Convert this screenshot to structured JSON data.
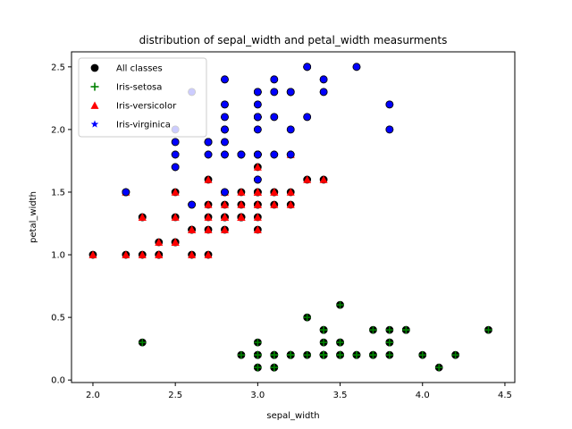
{
  "chart_data": {
    "type": "scatter",
    "title": "distribution of sepal_width and petal_width measurments",
    "xlabel": "sepal_width",
    "ylabel": "petal_width",
    "xlim": [
      1.87,
      4.56
    ],
    "ylim": [
      -0.02,
      2.62
    ],
    "xticks": [
      2.0,
      2.5,
      3.0,
      3.5,
      4.0,
      4.5
    ],
    "xtick_labels": [
      "2.0",
      "2.5",
      "3.0",
      "3.5",
      "4.0",
      "4.5"
    ],
    "yticks": [
      0.0,
      0.5,
      1.0,
      1.5,
      2.0,
      2.5
    ],
    "ytick_labels": [
      "0.0",
      "0.5",
      "1.0",
      "1.5",
      "2.0",
      "2.5"
    ],
    "grid": false,
    "legend": "top-left",
    "series": [
      {
        "name": "All classes",
        "marker": "circle",
        "color": "#000000",
        "points": []
      },
      {
        "name": "Iris-setosa",
        "marker": "plus",
        "color": "#008000",
        "points": [
          [
            3.5,
            0.2
          ],
          [
            3.0,
            0.2
          ],
          [
            3.2,
            0.2
          ],
          [
            3.1,
            0.2
          ],
          [
            3.6,
            0.2
          ],
          [
            3.9,
            0.4
          ],
          [
            3.4,
            0.3
          ],
          [
            3.4,
            0.2
          ],
          [
            2.9,
            0.2
          ],
          [
            3.1,
            0.1
          ],
          [
            3.7,
            0.2
          ],
          [
            3.4,
            0.2
          ],
          [
            3.0,
            0.1
          ],
          [
            3.0,
            0.1
          ],
          [
            4.0,
            0.2
          ],
          [
            4.4,
            0.4
          ],
          [
            3.9,
            0.4
          ],
          [
            3.5,
            0.3
          ],
          [
            3.8,
            0.3
          ],
          [
            3.8,
            0.3
          ],
          [
            3.4,
            0.2
          ],
          [
            3.7,
            0.4
          ],
          [
            3.6,
            0.2
          ],
          [
            3.3,
            0.5
          ],
          [
            3.4,
            0.2
          ],
          [
            3.0,
            0.2
          ],
          [
            3.4,
            0.4
          ],
          [
            3.5,
            0.2
          ],
          [
            3.4,
            0.2
          ],
          [
            3.2,
            0.2
          ],
          [
            3.1,
            0.2
          ],
          [
            3.4,
            0.4
          ],
          [
            4.1,
            0.1
          ],
          [
            4.2,
            0.2
          ],
          [
            3.1,
            0.2
          ],
          [
            3.2,
            0.2
          ],
          [
            3.5,
            0.2
          ],
          [
            3.1,
            0.1
          ],
          [
            3.0,
            0.2
          ],
          [
            3.4,
            0.2
          ],
          [
            3.5,
            0.3
          ],
          [
            2.3,
            0.3
          ],
          [
            3.2,
            0.2
          ],
          [
            3.5,
            0.6
          ],
          [
            3.8,
            0.4
          ],
          [
            3.0,
            0.3
          ],
          [
            3.8,
            0.2
          ],
          [
            3.2,
            0.2
          ],
          [
            3.7,
            0.2
          ],
          [
            3.3,
            0.2
          ]
        ]
      },
      {
        "name": "Iris-versicolor",
        "marker": "triangle",
        "color": "#ff0000",
        "points": [
          [
            3.2,
            1.4
          ],
          [
            3.2,
            1.5
          ],
          [
            3.1,
            1.5
          ],
          [
            2.3,
            1.3
          ],
          [
            2.8,
            1.5
          ],
          [
            2.8,
            1.3
          ],
          [
            3.3,
            1.6
          ],
          [
            2.4,
            1.0
          ],
          [
            2.9,
            1.3
          ],
          [
            2.7,
            1.4
          ],
          [
            2.0,
            1.0
          ],
          [
            3.0,
            1.5
          ],
          [
            2.2,
            1.0
          ],
          [
            2.9,
            1.4
          ],
          [
            2.9,
            1.3
          ],
          [
            3.1,
            1.4
          ],
          [
            3.0,
            1.5
          ],
          [
            2.7,
            1.0
          ],
          [
            2.2,
            1.5
          ],
          [
            2.5,
            1.1
          ],
          [
            3.2,
            1.8
          ],
          [
            2.8,
            1.3
          ],
          [
            2.5,
            1.5
          ],
          [
            2.8,
            1.2
          ],
          [
            2.9,
            1.3
          ],
          [
            3.0,
            1.4
          ],
          [
            2.8,
            1.4
          ],
          [
            3.0,
            1.7
          ],
          [
            2.9,
            1.5
          ],
          [
            2.6,
            1.0
          ],
          [
            2.4,
            1.1
          ],
          [
            2.4,
            1.0
          ],
          [
            2.7,
            1.2
          ],
          [
            2.7,
            1.6
          ],
          [
            3.0,
            1.5
          ],
          [
            3.4,
            1.6
          ],
          [
            3.1,
            1.5
          ],
          [
            2.3,
            1.3
          ],
          [
            3.0,
            1.3
          ],
          [
            2.5,
            1.3
          ],
          [
            2.6,
            1.2
          ],
          [
            3.0,
            1.4
          ],
          [
            2.6,
            1.2
          ],
          [
            2.3,
            1.0
          ],
          [
            2.7,
            1.3
          ],
          [
            3.0,
            1.2
          ],
          [
            2.9,
            1.3
          ],
          [
            2.9,
            1.3
          ],
          [
            2.5,
            1.1
          ],
          [
            2.8,
            1.3
          ]
        ]
      },
      {
        "name": "Iris-virginica",
        "marker": "star",
        "color": "#0000ff",
        "points": [
          [
            3.3,
            2.5
          ],
          [
            2.7,
            1.9
          ],
          [
            3.0,
            2.1
          ],
          [
            2.9,
            1.8
          ],
          [
            3.0,
            2.2
          ],
          [
            3.0,
            2.1
          ],
          [
            2.5,
            1.7
          ],
          [
            2.9,
            1.8
          ],
          [
            2.5,
            1.8
          ],
          [
            3.6,
            2.5
          ],
          [
            3.2,
            2.0
          ],
          [
            2.7,
            1.9
          ],
          [
            3.0,
            2.1
          ],
          [
            2.5,
            2.0
          ],
          [
            2.8,
            2.4
          ],
          [
            3.2,
            2.3
          ],
          [
            3.0,
            1.8
          ],
          [
            3.8,
            2.2
          ],
          [
            2.6,
            2.3
          ],
          [
            2.2,
            1.5
          ],
          [
            3.2,
            2.3
          ],
          [
            2.8,
            2.0
          ],
          [
            2.8,
            2.0
          ],
          [
            2.7,
            1.8
          ],
          [
            3.3,
            2.1
          ],
          [
            3.2,
            1.8
          ],
          [
            2.8,
            1.8
          ],
          [
            3.0,
            1.8
          ],
          [
            2.8,
            2.1
          ],
          [
            3.0,
            1.6
          ],
          [
            2.8,
            1.9
          ],
          [
            3.8,
            2.0
          ],
          [
            2.8,
            2.2
          ],
          [
            2.8,
            1.5
          ],
          [
            2.6,
            1.4
          ],
          [
            3.0,
            2.3
          ],
          [
            3.4,
            2.4
          ],
          [
            3.1,
            1.8
          ],
          [
            3.0,
            1.8
          ],
          [
            3.1,
            2.1
          ],
          [
            3.1,
            2.4
          ],
          [
            3.1,
            2.3
          ],
          [
            2.7,
            1.9
          ],
          [
            3.2,
            2.3
          ],
          [
            3.3,
            2.5
          ],
          [
            3.0,
            2.3
          ],
          [
            2.5,
            1.9
          ],
          [
            3.0,
            2.0
          ],
          [
            3.4,
            2.3
          ],
          [
            3.0,
            1.8
          ]
        ]
      }
    ]
  }
}
